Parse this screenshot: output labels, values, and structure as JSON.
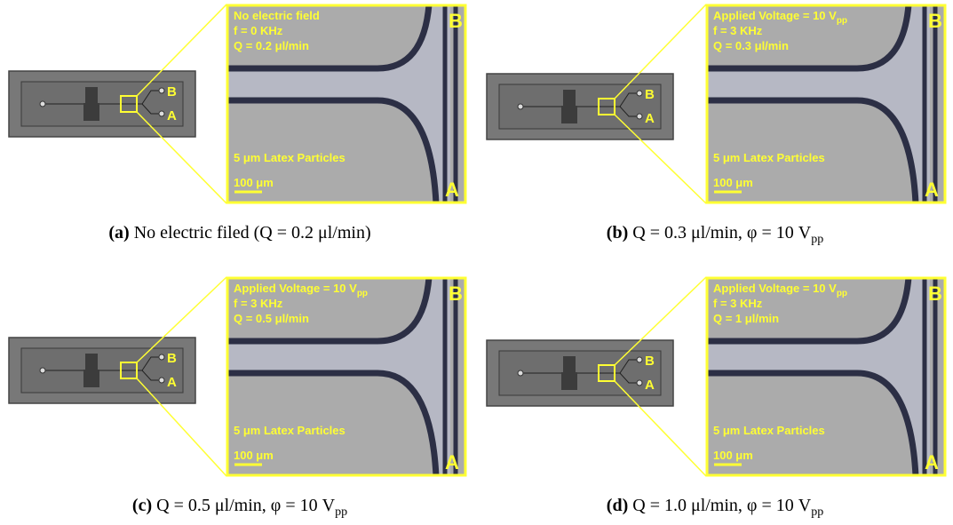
{
  "panels": [
    {
      "overlay": [
        "No electric field",
        "f = 0 KHz",
        "Q = 0.2 μl/min"
      ],
      "overlay_subscript": null,
      "particles": "5 μm Latex Particles",
      "scale": "100 μm",
      "outlet_top": "B",
      "outlet_bottom": "A",
      "chip_top": "B",
      "chip_bottom": "A",
      "caption": {
        "label": "(a)",
        "text": "No electric filed (Q = 0.2 μl/min)",
        "subscript": null
      }
    },
    {
      "overlay": [
        "Applied Voltage = 10 V",
        "f = 3 KHz",
        "Q = 0.3 μl/min"
      ],
      "overlay_subscript": "pp",
      "particles": "5 μm Latex Particles",
      "scale": "100 μm",
      "outlet_top": "B",
      "outlet_bottom": "A",
      "chip_top": "B",
      "chip_bottom": "A",
      "caption": {
        "label": "(b)",
        "text": "Q = 0.3 μl/min, φ = 10 V",
        "subscript": "pp"
      }
    },
    {
      "overlay": [
        "Applied Voltage = 10 V",
        "f = 3 KHz",
        "Q = 0.5 μl/min"
      ],
      "overlay_subscript": "pp",
      "particles": "5 μm Latex Particles",
      "scale": "100 μm",
      "outlet_top": "B",
      "outlet_bottom": "A",
      "chip_top": "B",
      "chip_bottom": "A",
      "caption": {
        "label": "(c)",
        "text": "Q = 0.5 μl/min, φ = 10 V",
        "subscript": "pp"
      }
    },
    {
      "overlay": [
        "Applied Voltage = 10 V",
        "f = 3 KHz",
        "Q = 1 μl/min"
      ],
      "overlay_subscript": "pp",
      "particles": "5 μm Latex Particles",
      "scale": "100 μm",
      "outlet_top": "B",
      "outlet_bottom": "A",
      "chip_top": "B",
      "chip_bottom": "A",
      "caption": {
        "label": "(d)",
        "text": "Q = 1.0 μl/min, φ = 10 V",
        "subscript": "pp"
      }
    }
  ]
}
